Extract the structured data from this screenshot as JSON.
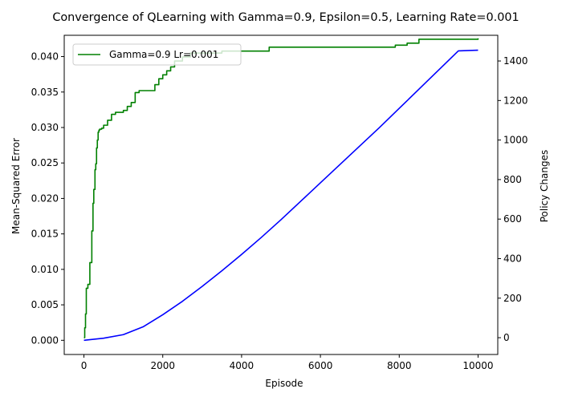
{
  "chart_data": {
    "type": "line",
    "title": "Convergence of QLearning with Gamma=0.9, Epsilon=0.5, Learning Rate=0.001",
    "xlabel": "Episode",
    "ylabel": "Mean-Squared Error",
    "y2label": "Policy Changes",
    "xlim": [
      -500,
      10500
    ],
    "ylim": [
      -0.002,
      0.043
    ],
    "y2lim": [
      -85,
      1530
    ],
    "x_ticks": [
      0,
      2000,
      4000,
      6000,
      8000,
      10000
    ],
    "y_ticks": [
      0.0,
      0.005,
      0.01,
      0.015,
      0.02,
      0.025,
      0.03,
      0.035,
      0.04
    ],
    "y_tick_labels": [
      "0.000",
      "0.005",
      "0.010",
      "0.015",
      "0.020",
      "0.025",
      "0.030",
      "0.035",
      "0.040"
    ],
    "y2_ticks": [
      0,
      200,
      400,
      600,
      800,
      1000,
      1200,
      1400
    ],
    "grid": false,
    "legend_position": "top-left",
    "colors": {
      "mse": "#0000ff",
      "policy": "#008000",
      "ylabel": "#0000ff",
      "y2label": "#ff0000"
    },
    "series": [
      {
        "name": "",
        "axis": "left",
        "color": "#0000ff",
        "x": [
          0,
          500,
          1000,
          1500,
          2000,
          2500,
          3000,
          3500,
          4000,
          4500,
          5000,
          5500,
          6000,
          6500,
          7000,
          7500,
          8000,
          8500,
          9000,
          9500,
          10000
        ],
        "values": [
          0.0,
          0.0003,
          0.0008,
          0.0019,
          0.0036,
          0.0055,
          0.0076,
          0.0098,
          0.0121,
          0.0145,
          0.017,
          0.0196,
          0.0222,
          0.0248,
          0.0274,
          0.03,
          0.0327,
          0.0354,
          0.0381,
          0.0408,
          0.0409
        ]
      },
      {
        "name": "Gamma=0.9 Lr=0.001",
        "axis": "right",
        "color": "#008000",
        "step": true,
        "x": [
          0,
          20,
          40,
          60,
          100,
          150,
          200,
          230,
          250,
          280,
          300,
          320,
          340,
          360,
          380,
          400,
          450,
          500,
          600,
          700,
          800,
          1000,
          1100,
          1200,
          1300,
          1400,
          1800,
          1900,
          2000,
          2100,
          2200,
          2300,
          2500,
          2700,
          3500,
          4700,
          7900,
          8200,
          8500,
          9500,
          10000
        ],
        "values": [
          0,
          50,
          120,
          250,
          270,
          380,
          540,
          680,
          750,
          850,
          880,
          960,
          1000,
          1040,
          1050,
          1055,
          1060,
          1075,
          1100,
          1130,
          1140,
          1150,
          1170,
          1190,
          1240,
          1250,
          1280,
          1310,
          1330,
          1350,
          1370,
          1400,
          1420,
          1440,
          1450,
          1470,
          1480,
          1490,
          1510,
          1510,
          1515
        ]
      }
    ]
  }
}
